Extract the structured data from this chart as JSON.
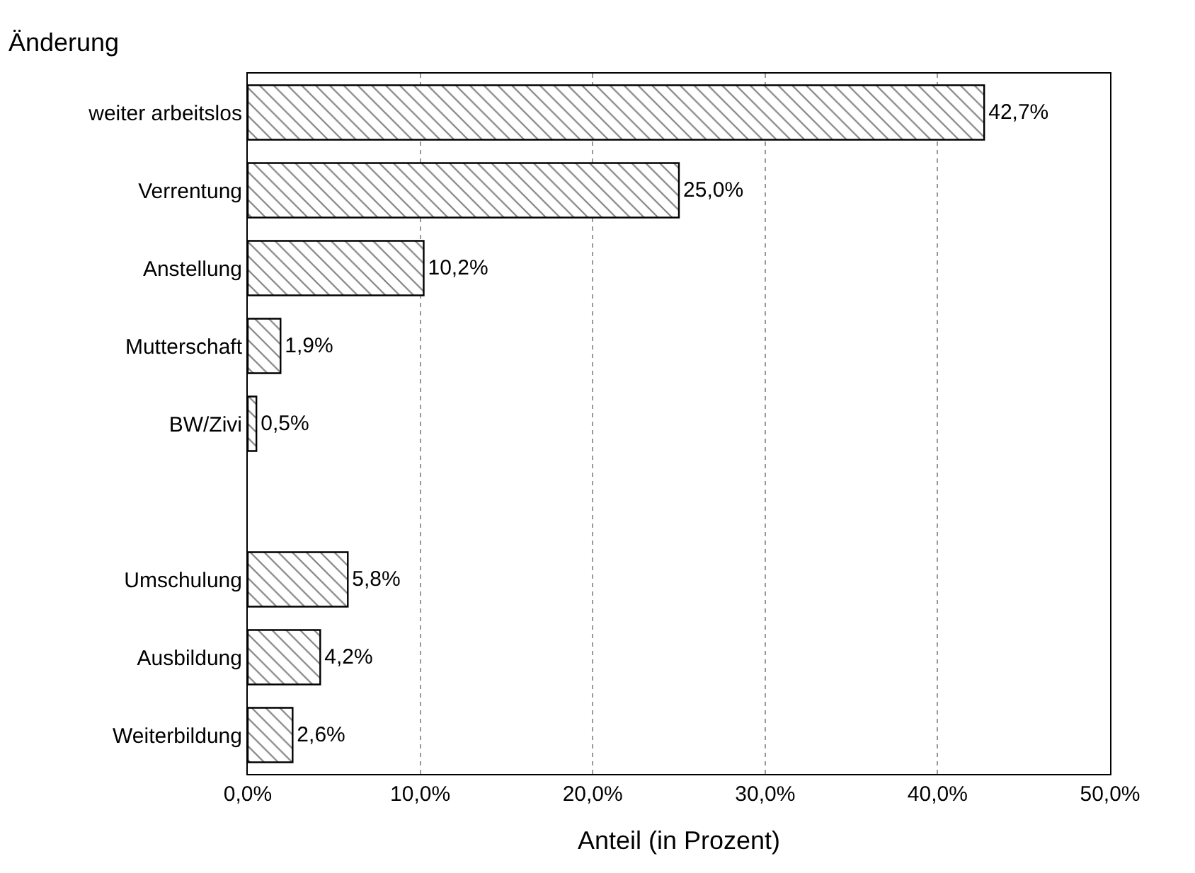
{
  "chart_data": {
    "type": "bar",
    "orientation": "horizontal",
    "ylabel": "Änderung",
    "xlabel": "Anteil (in Prozent)",
    "categories": [
      "weiter arbeitslos",
      "Verrentung",
      "Anstellung",
      "Mutterschaft",
      "BW/Zivi",
      null,
      "Umschulung",
      "Ausbildung",
      "Weiterbildung"
    ],
    "values": [
      42.7,
      25.0,
      10.2,
      1.9,
      0.5,
      null,
      5.8,
      4.2,
      2.6
    ],
    "value_labels": [
      "42,7%",
      "25,0%",
      "10,2%",
      "1,9%",
      "0,5%",
      null,
      "5,8%",
      "4,2%",
      "2,6%"
    ],
    "color": "#000000",
    "xlim": [
      0,
      50
    ],
    "xticks": [
      {
        "value": 0,
        "label": "0,0%"
      },
      {
        "value": 10,
        "label": "10,0%"
      },
      {
        "value": 20,
        "label": "20,0%"
      },
      {
        "value": 30,
        "label": "30,0%"
      },
      {
        "value": 40,
        "label": "40,0%"
      },
      {
        "value": 50,
        "label": "50,0%"
      }
    ],
    "grid": "x"
  }
}
